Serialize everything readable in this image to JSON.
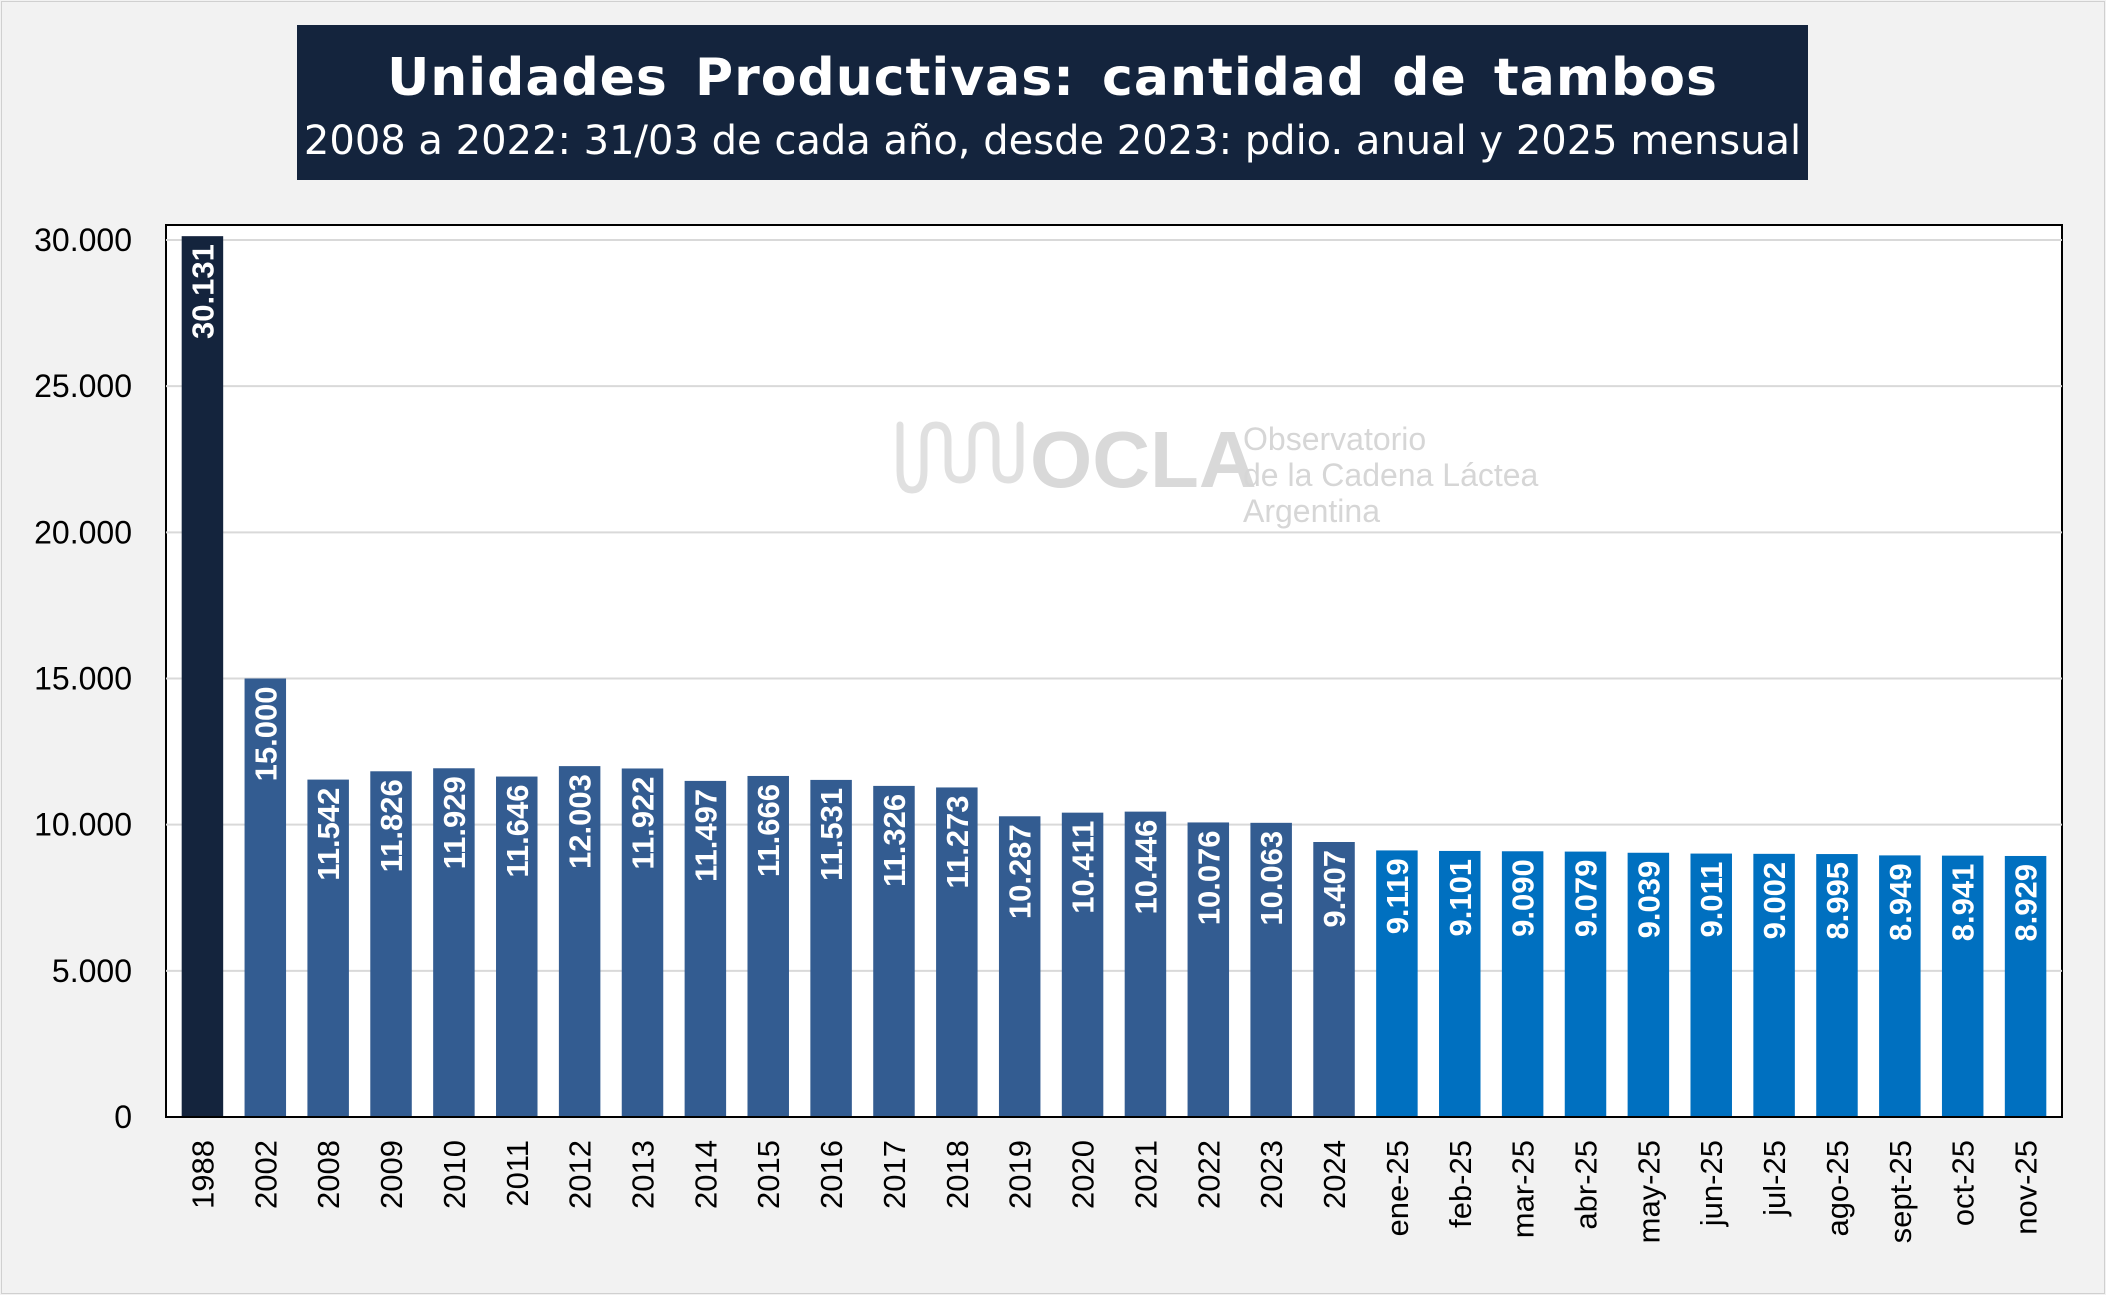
{
  "title": "Unidades Productivas: cantidad de tambos",
  "subtitle": "2008 a 2022: 31/03 de cada año, desde 2023: pdio. anual y 2025 mensual",
  "watermark": {
    "logo_text": "OCLA",
    "line1": "Observatorio",
    "line2": "de la Cadena Láctea",
    "line3": "Argentina",
    "icon": "milk-wave-logo-icon"
  },
  "colors": {
    "bar_1988": "#14243d",
    "bar_annual": "#335c91",
    "bar_monthly": "#0070c0",
    "grid": "#d9d9d9",
    "title_bg": "#14243d"
  },
  "chart_data": {
    "type": "bar",
    "title": "Unidades Productivas: cantidad de tambos",
    "subtitle": "2008 a 2022: 31/03 de cada año, desde 2023: pdio. anual y 2025 mensual",
    "xlabel": "",
    "ylabel": "",
    "ylim": [
      0,
      30000
    ],
    "yticks": [
      "0",
      "5.000",
      "10.000",
      "15.000",
      "20.000",
      "25.000",
      "30.000"
    ],
    "ytick_values": [
      0,
      5000,
      10000,
      15000,
      20000,
      25000,
      30000
    ],
    "grid": true,
    "legend": "none",
    "categories": [
      "1988",
      "2002",
      "2008",
      "2009",
      "2010",
      "2011",
      "2012",
      "2013",
      "2014",
      "2015",
      "2016",
      "2017",
      "2018",
      "2019",
      "2020",
      "2021",
      "2022",
      "2023",
      "2024",
      "ene-25",
      "feb-25",
      "mar-25",
      "abr-25",
      "may-25",
      "jun-25",
      "jul-25",
      "ago-25",
      "sept-25",
      "oct-25",
      "nov-25"
    ],
    "values": [
      30131,
      15000,
      11542,
      11826,
      11929,
      11646,
      12003,
      11922,
      11497,
      11666,
      11531,
      11326,
      11273,
      10287,
      10411,
      10446,
      10076,
      10063,
      9407,
      9119,
      9101,
      9090,
      9079,
      9039,
      9011,
      9002,
      8995,
      8949,
      8941,
      8929
    ],
    "labels": [
      "30.131",
      "15.000",
      "11.542",
      "11.826",
      "11.929",
      "11.646",
      "12.003",
      "11.922",
      "11.497",
      "11.666",
      "11.531",
      "11.326",
      "11.273",
      "10.287",
      "10.411",
      "10.446",
      "10.076",
      "10.063",
      "9.407",
      "9.119",
      "9.101",
      "9.090",
      "9.079",
      "9.039",
      "9.011",
      "9.002",
      "8.995",
      "8.949",
      "8.941",
      "8.929"
    ],
    "bar_groups": [
      "1988",
      "annual",
      "annual",
      "annual",
      "annual",
      "annual",
      "annual",
      "annual",
      "annual",
      "annual",
      "annual",
      "annual",
      "annual",
      "annual",
      "annual",
      "annual",
      "annual",
      "annual",
      "annual",
      "monthly",
      "monthly",
      "monthly",
      "monthly",
      "monthly",
      "monthly",
      "monthly",
      "monthly",
      "monthly",
      "monthly",
      "monthly"
    ]
  }
}
